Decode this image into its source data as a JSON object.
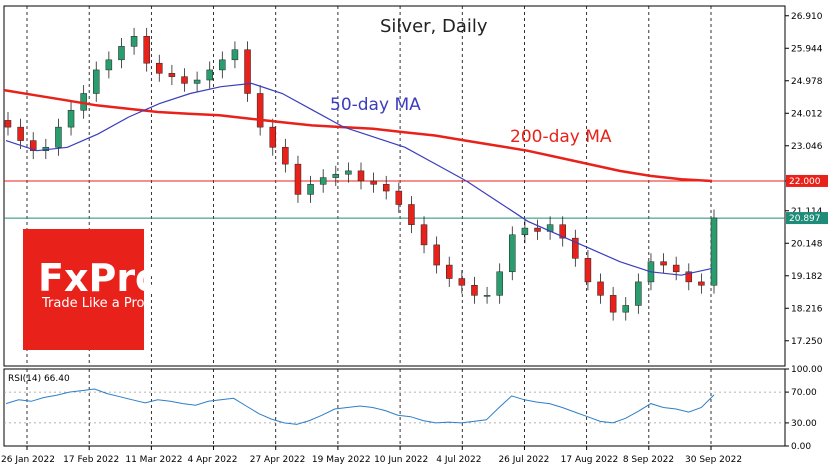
{
  "chart_data": [
    {
      "type": "candlestick",
      "title": "Silver, Daily",
      "x_ticks": [
        "26 Jan 2022",
        "17 Feb 2022",
        "11 Mar 2022",
        "4 Apr 2022",
        "27 Apr 2022",
        "19 May 2022",
        "10 Jun 2022",
        "4 Jul 2022",
        "26 Jul 2022",
        "17 Aug 2022",
        "8 Sep 2022",
        "30 Sep 2022"
      ],
      "y_ticks": [
        "26.910",
        "25.944",
        "24.978",
        "24.012",
        "23.046",
        "22.000",
        "21.114",
        "20.148",
        "19.182",
        "18.216",
        "17.250"
      ],
      "ylim": [
        16.5,
        27.2
      ],
      "grid": true,
      "price_levels": [
        {
          "label": "22.000",
          "value": 22.0,
          "color": "#e8221b"
        },
        {
          "label": "20.897",
          "value": 20.897,
          "color": "#1e8c78"
        }
      ],
      "series": [
        {
          "name": "50-day MA",
          "color": "#3a3dbd",
          "values": [
            23.2,
            22.9,
            23.0,
            23.4,
            23.9,
            24.3,
            24.6,
            24.8,
            24.9,
            24.6,
            24.1,
            23.6,
            23.3,
            23.0,
            22.5,
            22.0,
            21.4,
            20.8,
            20.4,
            20.0,
            19.6,
            19.3,
            19.2,
            19.4
          ]
        },
        {
          "name": "200-day MA",
          "color": "#e8221b",
          "values": [
            24.7,
            24.55,
            24.4,
            24.25,
            24.15,
            24.05,
            24.0,
            23.95,
            23.85,
            23.75,
            23.65,
            23.6,
            23.55,
            23.45,
            23.35,
            23.2,
            23.05,
            22.9,
            22.7,
            22.5,
            22.3,
            22.15,
            22.05,
            22.0
          ]
        }
      ],
      "candles_close": [
        23.6,
        23.2,
        22.9,
        23.0,
        23.6,
        24.1,
        24.6,
        25.3,
        25.6,
        26.0,
        26.3,
        25.5,
        25.2,
        25.1,
        24.9,
        25.0,
        25.3,
        25.6,
        25.9,
        24.6,
        23.6,
        23.0,
        22.5,
        21.6,
        21.9,
        22.1,
        22.2,
        22.3,
        22.0,
        21.9,
        21.7,
        21.3,
        20.7,
        20.1,
        19.5,
        19.1,
        18.9,
        18.6,
        18.6,
        19.3,
        20.4,
        20.6,
        20.5,
        20.7,
        20.3,
        19.7,
        19.0,
        18.6,
        18.1,
        18.3,
        19.0,
        19.6,
        19.5,
        19.3,
        19.0,
        18.9,
        20.9
      ]
    },
    {
      "type": "line",
      "title": "RSI(14) 66.40",
      "y_ticks": [
        "100.00",
        "70.00",
        "30.00",
        "0.00"
      ],
      "ylim": [
        0,
        100
      ],
      "series": [
        {
          "name": "RSI(14)",
          "color": "#2e7fc8",
          "values": [
            55,
            60,
            58,
            63,
            66,
            70,
            72,
            74,
            68,
            64,
            60,
            56,
            60,
            58,
            55,
            53,
            58,
            60,
            62,
            52,
            42,
            35,
            30,
            28,
            33,
            40,
            48,
            50,
            52,
            50,
            46,
            40,
            38,
            33,
            30,
            31,
            30,
            32,
            34,
            50,
            65,
            60,
            57,
            55,
            50,
            44,
            38,
            32,
            30,
            36,
            45,
            55,
            50,
            48,
            44,
            50,
            66.4
          ]
        }
      ]
    }
  ],
  "annotations": {
    "ma50": "50-day MA",
    "ma200": "200-day MA"
  },
  "logo": {
    "brand": "FxPro",
    "tagline": "Trade Like a Pro",
    "color": "#e8221b"
  }
}
